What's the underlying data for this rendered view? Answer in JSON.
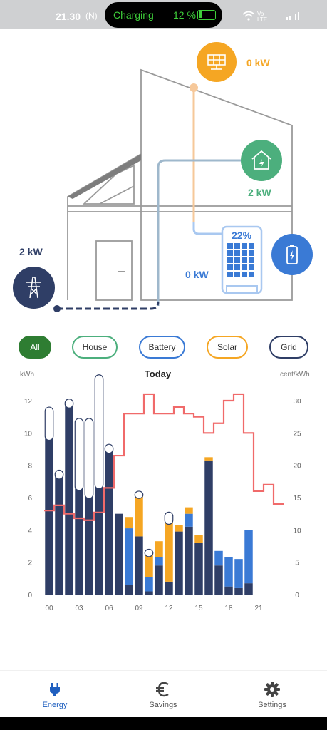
{
  "status_bar": {
    "time": "21.30",
    "nfc_glyph": "(N)",
    "charging_label": "Charging",
    "battery_percent": "12 %",
    "right_icons": "wifi-icon signal-icon",
    "right_text": "Vo LTE",
    "battery_level": 0.12
  },
  "energy_flow": {
    "solar": {
      "value": "0 kW",
      "icon": "solar-panel-icon",
      "color": "#f5a623"
    },
    "house": {
      "value": "2 kW",
      "icon": "house-plug-icon",
      "color": "#4caf7d"
    },
    "battery": {
      "value": "0 kW",
      "state_of_charge": "22%",
      "icon": "battery-charging-icon",
      "color": "#3a7ad5"
    },
    "grid": {
      "value": "2 kW",
      "icon": "power-pylon-icon",
      "color": "#2f3e66"
    }
  },
  "filters": {
    "all": "All",
    "house": "House",
    "battery": "Battery",
    "solar": "Solar",
    "grid": "Grid",
    "selected": "All"
  },
  "chart_data": {
    "type": "bar",
    "title": "Today",
    "y_left_unit": "kWh",
    "y_right_unit": "cent/kWh",
    "ylim_left": [
      0,
      12
    ],
    "ylim_right": [
      0,
      30
    ],
    "y_left_ticks": [
      "0",
      "2",
      "4",
      "6",
      "8",
      "10",
      "12"
    ],
    "y_right_ticks": [
      "0",
      "5",
      "10",
      "15",
      "20",
      "25",
      "30"
    ],
    "x_ticks": [
      "00",
      "03",
      "06",
      "09",
      "12",
      "15",
      "18",
      "21"
    ],
    "hours": [
      0,
      1,
      2,
      3,
      4,
      5,
      6,
      7,
      8,
      9,
      10,
      11,
      12,
      13,
      14,
      15,
      16,
      17,
      18,
      19,
      20
    ],
    "series": [
      {
        "name": "Grid",
        "color": "#2f3e66",
        "values": [
          9.8,
          7.4,
          11.8,
          6.7,
          6.2,
          6.8,
          9.0,
          5.0,
          0.6,
          3.6,
          0.2,
          1.8,
          0.8,
          3.9,
          4.2,
          3.2,
          8.3,
          1.8,
          0.5,
          0.4,
          0.7
        ]
      },
      {
        "name": "Battery",
        "color": "#3a7ad5",
        "values": [
          0,
          0,
          0,
          0,
          0,
          0,
          0,
          0,
          3.5,
          0,
          0.9,
          0.5,
          0,
          0,
          0.8,
          0,
          0,
          0.9,
          1.8,
          1.8,
          3.3
        ]
      },
      {
        "name": "Solar",
        "color": "#f5a623",
        "values": [
          0,
          0,
          0,
          0,
          0,
          0,
          0,
          0,
          0.7,
          2.6,
          1.5,
          1.0,
          3.8,
          0.4,
          0.4,
          0.5,
          0.2,
          0,
          0,
          0,
          0
        ]
      },
      {
        "name": "Export",
        "color": "#ffffff",
        "values": [
          1.8,
          0.3,
          0.3,
          4.2,
          4.7,
          6.8,
          0.3,
          0,
          0,
          0.2,
          0.2,
          0,
          0.5,
          0,
          0,
          0,
          0,
          0,
          0,
          0,
          0
        ]
      }
    ],
    "price_line": {
      "name": "cent/kWh",
      "color": "#f06a6a",
      "values": [
        13,
        13.8,
        12.5,
        11.8,
        11.5,
        12.7,
        16.5,
        21.5,
        28,
        28,
        31,
        28,
        28,
        29,
        28,
        27.5,
        25,
        26.5,
        30,
        31,
        25,
        16,
        17,
        14
      ]
    }
  },
  "nav": {
    "energy": {
      "label": "Energy",
      "icon": "plug-icon",
      "active": true
    },
    "savings": {
      "label": "Savings",
      "icon": "euro-icon"
    },
    "settings": {
      "label": "Settings",
      "icon": "gear-icon"
    }
  }
}
